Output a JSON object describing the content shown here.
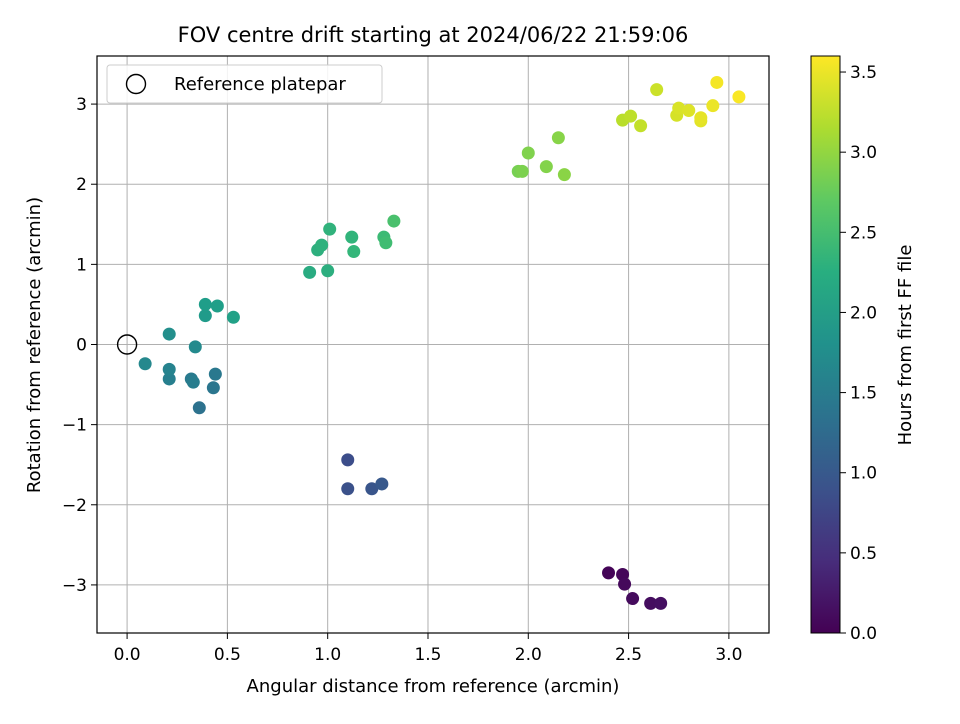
{
  "chart_data": {
    "type": "scatter",
    "title": "FOV centre drift starting at 2024/06/22 21:59:06",
    "xlabel": "Angular distance from reference (arcmin)",
    "ylabel": "Rotation from reference (arcmin)",
    "xlim": [
      -0.15,
      3.2
    ],
    "ylim": [
      -3.6,
      3.6
    ],
    "xticks": [
      0.0,
      0.5,
      1.0,
      1.5,
      2.0,
      2.5,
      3.0
    ],
    "xtick_labels": [
      "0.0",
      "0.5",
      "1.0",
      "1.5",
      "2.0",
      "2.5",
      "3.0"
    ],
    "yticks": [
      -3,
      -2,
      -1,
      0,
      1,
      2,
      3
    ],
    "ytick_labels": [
      "−3",
      "−2",
      "−1",
      "0",
      "1",
      "2",
      "3"
    ],
    "grid": true,
    "legend": {
      "position": "top-left",
      "entries": [
        {
          "label": "Reference platepar",
          "marker": "open-circle"
        }
      ]
    },
    "reference_point": {
      "x": 0.0,
      "y": 0.0
    },
    "colorbar": {
      "label": "Hours from first FF file",
      "colormap": "viridis",
      "range": [
        0.0,
        3.6
      ],
      "ticks": [
        0.0,
        0.5,
        1.0,
        1.5,
        2.0,
        2.5,
        3.0,
        3.5
      ],
      "tick_labels": [
        "0.0",
        "0.5",
        "1.0",
        "1.5",
        "2.0",
        "2.5",
        "3.0",
        "3.5"
      ]
    },
    "points": [
      {
        "x": 2.4,
        "y": -2.85,
        "c": 0.03
      },
      {
        "x": 2.47,
        "y": -2.87,
        "c": 0.06
      },
      {
        "x": 2.48,
        "y": -2.99,
        "c": 0.08
      },
      {
        "x": 2.52,
        "y": -3.17,
        "c": 0.1
      },
      {
        "x": 2.61,
        "y": -3.23,
        "c": 0.12
      },
      {
        "x": 2.66,
        "y": -3.23,
        "c": 0.14
      },
      {
        "x": 1.1,
        "y": -1.44,
        "c": 0.85
      },
      {
        "x": 1.1,
        "y": -1.8,
        "c": 0.9
      },
      {
        "x": 1.22,
        "y": -1.8,
        "c": 0.95
      },
      {
        "x": 1.27,
        "y": -1.74,
        "c": 1.0
      },
      {
        "x": 0.36,
        "y": -0.79,
        "c": 1.35
      },
      {
        "x": 0.43,
        "y": -0.54,
        "c": 1.42
      },
      {
        "x": 0.44,
        "y": -0.37,
        "c": 1.45
      },
      {
        "x": 0.32,
        "y": -0.43,
        "c": 1.48
      },
      {
        "x": 0.33,
        "y": -0.47,
        "c": 1.52
      },
      {
        "x": 0.21,
        "y": -0.43,
        "c": 1.55
      },
      {
        "x": 0.21,
        "y": -0.31,
        "c": 1.62
      },
      {
        "x": 0.09,
        "y": -0.24,
        "c": 1.68
      },
      {
        "x": 0.34,
        "y": -0.03,
        "c": 1.72
      },
      {
        "x": 0.21,
        "y": 0.13,
        "c": 1.78
      },
      {
        "x": 0.39,
        "y": 0.36,
        "c": 1.95
      },
      {
        "x": 0.39,
        "y": 0.5,
        "c": 2.0
      },
      {
        "x": 0.45,
        "y": 0.48,
        "c": 2.02
      },
      {
        "x": 0.53,
        "y": 0.34,
        "c": 2.05
      },
      {
        "x": 0.91,
        "y": 0.9,
        "c": 2.2
      },
      {
        "x": 1.0,
        "y": 0.92,
        "c": 2.25
      },
      {
        "x": 0.95,
        "y": 1.18,
        "c": 2.28
      },
      {
        "x": 0.97,
        "y": 1.24,
        "c": 2.3
      },
      {
        "x": 1.01,
        "y": 1.44,
        "c": 2.32
      },
      {
        "x": 1.12,
        "y": 1.34,
        "c": 2.35
      },
      {
        "x": 1.13,
        "y": 1.16,
        "c": 2.38
      },
      {
        "x": 1.28,
        "y": 1.34,
        "c": 2.45
      },
      {
        "x": 1.29,
        "y": 1.27,
        "c": 2.48
      },
      {
        "x": 1.33,
        "y": 1.54,
        "c": 2.55
      },
      {
        "x": 1.95,
        "y": 2.16,
        "c": 2.85
      },
      {
        "x": 1.97,
        "y": 2.16,
        "c": 2.88
      },
      {
        "x": 2.0,
        "y": 2.39,
        "c": 2.9
      },
      {
        "x": 2.09,
        "y": 2.22,
        "c": 2.92
      },
      {
        "x": 2.15,
        "y": 2.58,
        "c": 2.94
      },
      {
        "x": 2.18,
        "y": 2.12,
        "c": 2.96
      },
      {
        "x": 2.47,
        "y": 2.8,
        "c": 3.22
      },
      {
        "x": 2.51,
        "y": 2.85,
        "c": 3.25
      },
      {
        "x": 2.56,
        "y": 2.73,
        "c": 3.28
      },
      {
        "x": 2.64,
        "y": 3.18,
        "c": 3.32
      },
      {
        "x": 2.74,
        "y": 2.86,
        "c": 3.38
      },
      {
        "x": 2.75,
        "y": 2.95,
        "c": 3.4
      },
      {
        "x": 2.8,
        "y": 2.92,
        "c": 3.42
      },
      {
        "x": 2.86,
        "y": 2.79,
        "c": 3.45
      },
      {
        "x": 2.86,
        "y": 2.83,
        "c": 3.47
      },
      {
        "x": 2.92,
        "y": 2.98,
        "c": 3.5
      },
      {
        "x": 2.94,
        "y": 3.27,
        "c": 3.55
      },
      {
        "x": 3.05,
        "y": 3.09,
        "c": 3.58
      }
    ]
  }
}
